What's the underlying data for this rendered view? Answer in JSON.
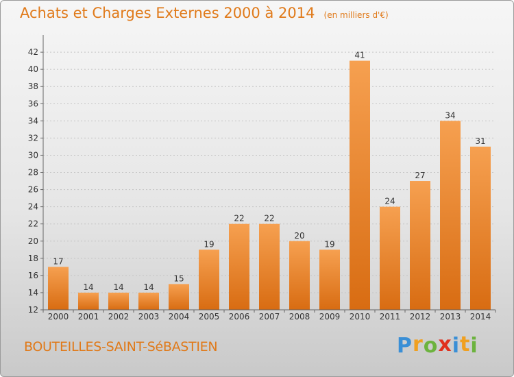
{
  "chart_data": {
    "type": "bar",
    "title": "Achats et Charges Externes 2000 à 2014",
    "subtitle": "(en milliers d'€)",
    "categories": [
      "2000",
      "2001",
      "2002",
      "2003",
      "2004",
      "2005",
      "2006",
      "2007",
      "2008",
      "2009",
      "2010",
      "2011",
      "2012",
      "2013",
      "2014"
    ],
    "values": [
      17,
      14,
      14,
      14,
      15,
      19,
      22,
      22,
      20,
      19,
      41,
      24,
      27,
      34,
      31
    ],
    "xlabel": "",
    "ylabel": "",
    "ylim": [
      12,
      44
    ],
    "yticks": [
      "12",
      "14",
      "16",
      "18",
      "20",
      "22",
      "24",
      "26",
      "28",
      "30",
      "32",
      "34",
      "36",
      "38",
      "40",
      "42"
    ],
    "grid": true,
    "bar_color": "#f08a2a",
    "title_color": "#e07a1a"
  },
  "footer": {
    "city": "BOUTEILLES-SAINT-SéBASTIEN",
    "logo": {
      "letters": [
        "P",
        "r",
        "o",
        "x",
        "i",
        "t",
        "i"
      ],
      "colors": [
        "#3a8fd6",
        "#f0a020",
        "#6cb33e",
        "#e0301e",
        "#3a8fd6",
        "#f0a020",
        "#6cb33e"
      ]
    }
  }
}
